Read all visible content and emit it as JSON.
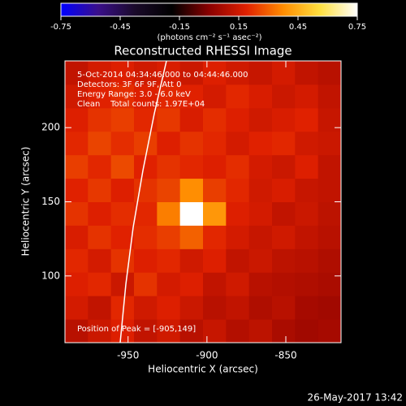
{
  "chart_data": {
    "type": "heatmap",
    "title": "Reconstructed RHESSI Image",
    "colorbar_label": "(photons cm⁻² s⁻¹ asec⁻²)",
    "xlabel": "Heliocentric X (arcsec)",
    "ylabel": "Heliocentric Y (arcsec)",
    "annotations": [
      "5-Oct-2014 04:34:46.000 to 04:44:46.000",
      "Detectors: 3F 6F 9F, Att 0",
      "Energy Range: 3.0 - 6.0 keV",
      "Clean    Total counts: 1.97E+04"
    ],
    "peak_label": "Position of Peak = [-905,149]",
    "timestamp": "26-May-2017 13:42",
    "xlim": [
      -990,
      -815
    ],
    "xticks": [
      -950,
      -900,
      -850
    ],
    "ylim": [
      55,
      245
    ],
    "yticks": [
      100,
      150,
      200
    ],
    "zlim": [
      -0.75,
      0.75
    ],
    "zticks": [
      -0.75,
      -0.45,
      -0.15,
      0.15,
      0.45,
      0.75
    ],
    "colorscale": [
      "#0000ff",
      "#3a0f8a",
      "#1a0a2a",
      "#000000",
      "#8a0000",
      "#e02000",
      "#ff8c00",
      "#ffe040",
      "#ffffff"
    ],
    "z": [
      [
        0.1,
        0.14,
        0.18,
        0.12,
        0.15,
        0.1,
        0.13,
        0.09,
        0.11,
        0.07,
        0.05,
        0.06
      ],
      [
        0.16,
        0.12,
        0.2,
        0.15,
        0.18,
        0.14,
        0.1,
        0.12,
        0.08,
        0.1,
        0.06,
        0.05
      ],
      [
        0.18,
        0.2,
        0.14,
        0.22,
        0.16,
        0.18,
        0.12,
        0.15,
        0.1,
        0.09,
        0.08,
        0.07
      ],
      [
        0.2,
        0.16,
        0.22,
        0.18,
        0.2,
        0.15,
        0.18,
        0.12,
        0.14,
        0.11,
        0.1,
        0.08
      ],
      [
        0.17,
        0.22,
        0.19,
        0.21,
        0.24,
        0.3,
        0.2,
        0.16,
        0.13,
        0.15,
        0.12,
        0.1
      ],
      [
        0.22,
        0.18,
        0.21,
        0.2,
        0.35,
        0.75,
        0.4,
        0.18,
        0.16,
        0.12,
        0.14,
        0.11
      ],
      [
        0.19,
        0.23,
        0.18,
        0.22,
        0.25,
        0.38,
        0.24,
        0.2,
        0.15,
        0.17,
        0.13,
        0.12
      ],
      [
        0.24,
        0.2,
        0.26,
        0.19,
        0.22,
        0.2,
        0.18,
        0.21,
        0.16,
        0.14,
        0.18,
        0.12
      ],
      [
        0.2,
        0.25,
        0.21,
        0.24,
        0.18,
        0.22,
        0.2,
        0.16,
        0.19,
        0.2,
        0.15,
        0.14
      ],
      [
        0.18,
        0.22,
        0.24,
        0.2,
        0.23,
        0.17,
        0.21,
        0.18,
        0.15,
        0.17,
        0.19,
        0.13
      ],
      [
        0.15,
        0.19,
        0.21,
        0.18,
        0.2,
        0.19,
        0.16,
        0.2,
        0.17,
        0.14,
        0.16,
        0.12
      ],
      [
        0.12,
        0.16,
        0.18,
        0.15,
        0.17,
        0.14,
        0.18,
        0.15,
        0.13,
        0.16,
        0.12,
        0.1
      ]
    ]
  }
}
